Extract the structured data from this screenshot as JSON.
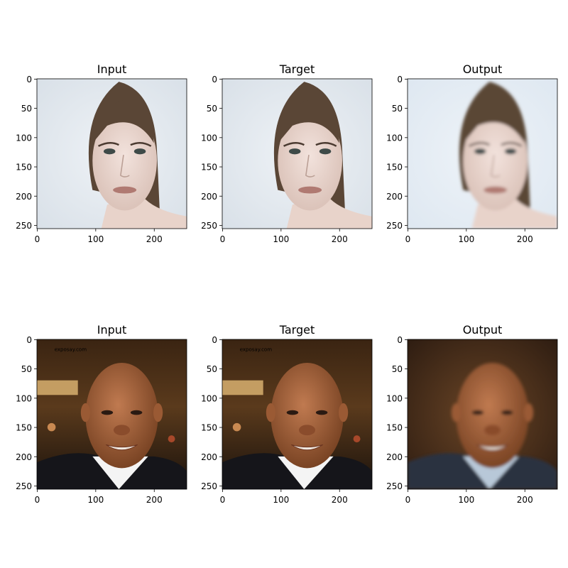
{
  "figure": {
    "rows": [
      {
        "panels": [
          {
            "title": "Input",
            "watermark": "",
            "palette": "light"
          },
          {
            "title": "Target",
            "watermark": "",
            "palette": "light"
          },
          {
            "title": "Output",
            "watermark": "",
            "palette": "light-blur"
          }
        ]
      },
      {
        "panels": [
          {
            "title": "Input",
            "watermark": "exposay.com",
            "palette": "dark"
          },
          {
            "title": "Target",
            "watermark": "exposay.com",
            "palette": "dark"
          },
          {
            "title": "Output",
            "watermark": "",
            "palette": "dark-blur"
          }
        ]
      }
    ],
    "x_ticks": [
      "0",
      "100",
      "200"
    ],
    "y_ticks": [
      "0",
      "50",
      "100",
      "150",
      "200",
      "250"
    ],
    "x_tick_values": [
      0,
      100,
      200
    ],
    "y_tick_values": [
      0,
      50,
      100,
      150,
      200,
      250
    ],
    "image_size": 256
  }
}
